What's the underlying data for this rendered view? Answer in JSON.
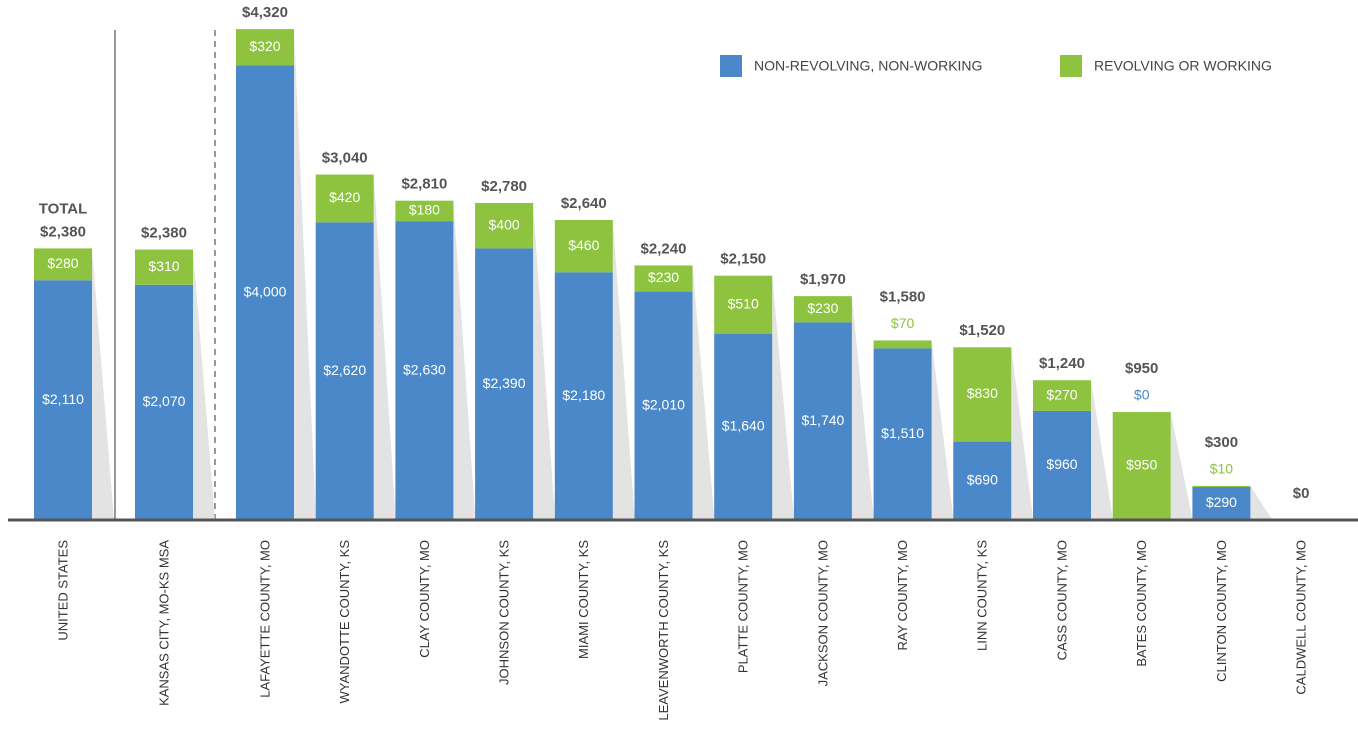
{
  "chart_data": {
    "type": "stacked_bar",
    "categories": [
      "UNITED STATES",
      "KANSAS CITY, MO-KS MSA",
      "LAFAYETTE COUNTY, MO",
      "WYANDOTTE COUNTY, KS",
      "CLAY COUNTY, MO",
      "JOHNSON COUNTY, KS",
      "MIAMI COUNTY, KS",
      "LEAVENWORTH COUNTY, KS",
      "PLATTE COUNTY, MO",
      "JACKSON COUNTY, MO",
      "RAY COUNTY, MO",
      "LINN COUNTY, KS",
      "CASS COUNTY, MO",
      "BATES COUNTY, MO",
      "CLINTON COUNTY, MO",
      "CALDWELL COUNTY, MO"
    ],
    "series": [
      {
        "name": "NON-REVOLVING, NON-WORKING",
        "color": "#4a88c9",
        "values": [
          2110,
          2070,
          4000,
          2620,
          2630,
          2390,
          2180,
          2010,
          1640,
          1740,
          1510,
          690,
          960,
          0,
          290,
          0
        ],
        "value_labels": [
          "$2,110",
          "$2,070",
          "$4,000",
          "$2,620",
          "$2,630",
          "$2,390",
          "$2,180",
          "$2,010",
          "$1,640",
          "$1,740",
          "$1,510",
          "$690",
          "$960",
          "$0",
          "$290",
          null
        ]
      },
      {
        "name": "REVOLVING OR WORKING",
        "color": "#8dc33f",
        "values": [
          280,
          310,
          320,
          420,
          180,
          400,
          460,
          230,
          510,
          230,
          70,
          830,
          270,
          950,
          10,
          0
        ],
        "value_labels": [
          "$280",
          "$310",
          "$320",
          "$420",
          "$180",
          "$400",
          "$460",
          "$230",
          "$510",
          "$230",
          "$70",
          "$830",
          "$270",
          "$950",
          "$10",
          null
        ]
      }
    ],
    "totals": [
      2380,
      2380,
      4320,
      3040,
      2810,
      2780,
      2640,
      2240,
      2150,
      1970,
      1580,
      1520,
      1240,
      950,
      300,
      0
    ],
    "total_labels": [
      "$2,380",
      "$2,380",
      "$4,320",
      "$3,040",
      "$2,810",
      "$2,780",
      "$2,640",
      "$2,240",
      "$2,150",
      "$1,970",
      "$1,580",
      "$1,520",
      "$1,240",
      "$950",
      "$300",
      "$0"
    ],
    "total_caption": "TOTAL",
    "ylim": [
      0,
      4400
    ],
    "legend": "top-right"
  }
}
